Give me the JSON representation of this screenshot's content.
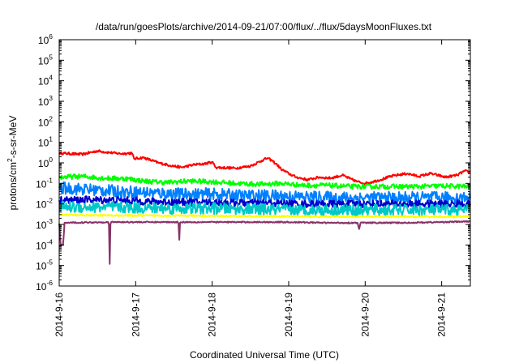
{
  "chart_data": {
    "type": "line",
    "title": "/data/run/goesPlots/archive/2014-09-21/07:00/flux/../flux/5daysMoonFluxes.txt",
    "xlabel": "Coordinated Universal Time (UTC)",
    "ylabel": {
      "base": "protons/cm",
      "sup": "2",
      "rest": "-s-sr-MeV"
    },
    "y_scale": "log",
    "ylim": [
      1e-06,
      1000000.0
    ],
    "y_ticks": [
      {
        "base": "10",
        "exp": "6"
      },
      {
        "base": "10",
        "exp": "5"
      },
      {
        "base": "10",
        "exp": "4"
      },
      {
        "base": "10",
        "exp": "3"
      },
      {
        "base": "10",
        "exp": "2"
      },
      {
        "base": "10",
        "exp": "1"
      },
      {
        "base": "10",
        "exp": "0"
      },
      {
        "base": "10",
        "exp": "-1"
      },
      {
        "base": "10",
        "exp": "-2"
      },
      {
        "base": "10",
        "exp": "-3"
      },
      {
        "base": "10",
        "exp": "-4"
      },
      {
        "base": "10",
        "exp": "-5"
      },
      {
        "base": "10",
        "exp": "-6"
      }
    ],
    "x_range_days": [
      "2014-09-16 00:00",
      "2014-09-21 09:00"
    ],
    "x_ticks": [
      "2014-9-16",
      "2014-9-17",
      "2014-9-18",
      "2014-9-19",
      "2014-9-20",
      "2014-9-21"
    ],
    "grid": false,
    "legend": "none",
    "series": [
      {
        "color": "#ff0000",
        "points": [
          [
            0.0,
            3.0
          ],
          [
            0.3,
            2.6
          ],
          [
            0.5,
            3.8
          ],
          [
            0.65,
            3.2
          ],
          [
            0.8,
            2.8
          ],
          [
            0.95,
            3.0
          ],
          [
            0.98,
            1.6
          ],
          [
            1.1,
            1.8
          ],
          [
            1.3,
            1.0
          ],
          [
            1.45,
            0.75
          ],
          [
            1.6,
            0.6
          ],
          [
            1.75,
            0.8
          ],
          [
            1.9,
            0.9
          ],
          [
            2.0,
            1.1
          ],
          [
            2.05,
            0.6
          ],
          [
            2.3,
            0.55
          ],
          [
            2.5,
            0.7
          ],
          [
            2.65,
            1.3
          ],
          [
            2.72,
            1.7
          ],
          [
            2.78,
            1.3
          ],
          [
            2.85,
            0.8
          ],
          [
            2.9,
            0.5
          ],
          [
            3.0,
            0.3
          ],
          [
            3.1,
            0.2
          ],
          [
            3.25,
            0.15
          ],
          [
            3.4,
            0.2
          ],
          [
            3.55,
            0.18
          ],
          [
            3.7,
            0.25
          ],
          [
            3.8,
            0.17
          ],
          [
            3.9,
            0.12
          ],
          [
            4.0,
            0.1
          ],
          [
            4.1,
            0.12
          ],
          [
            4.2,
            0.15
          ],
          [
            4.3,
            0.2
          ],
          [
            4.4,
            0.25
          ],
          [
            4.55,
            0.3
          ],
          [
            4.7,
            0.22
          ],
          [
            4.85,
            0.3
          ],
          [
            4.95,
            0.25
          ],
          [
            5.05,
            0.2
          ],
          [
            5.2,
            0.25
          ],
          [
            5.3,
            0.4
          ],
          [
            5.375,
            0.35
          ]
        ]
      },
      {
        "color": "#00ff00",
        "points": [
          [
            0.0,
            0.2
          ],
          [
            0.3,
            0.22
          ],
          [
            0.6,
            0.18
          ],
          [
            0.9,
            0.17
          ],
          [
            1.1,
            0.13
          ],
          [
            1.4,
            0.11
          ],
          [
            1.7,
            0.13
          ],
          [
            2.0,
            0.12
          ],
          [
            2.3,
            0.1
          ],
          [
            2.6,
            0.09
          ],
          [
            2.9,
            0.1
          ],
          [
            3.2,
            0.08
          ],
          [
            3.5,
            0.08
          ],
          [
            3.8,
            0.07
          ],
          [
            4.1,
            0.07
          ],
          [
            4.4,
            0.07
          ],
          [
            4.7,
            0.07
          ],
          [
            5.0,
            0.075
          ],
          [
            5.375,
            0.07
          ]
        ]
      },
      {
        "color": "#0080ff",
        "points": [
          [
            0.0,
            0.06
          ],
          [
            0.4,
            0.05
          ],
          [
            0.8,
            0.04
          ],
          [
            1.2,
            0.035
          ],
          [
            1.6,
            0.03
          ],
          [
            2.0,
            0.03
          ],
          [
            2.4,
            0.025
          ],
          [
            2.8,
            0.025
          ],
          [
            3.2,
            0.022
          ],
          [
            3.6,
            0.02
          ],
          [
            4.0,
            0.02
          ],
          [
            4.4,
            0.02
          ],
          [
            4.8,
            0.02
          ],
          [
            5.375,
            0.02
          ]
        ]
      },
      {
        "color": "#0000cc",
        "points": [
          [
            0.0,
            0.015
          ],
          [
            0.4,
            0.016
          ],
          [
            0.8,
            0.015
          ],
          [
            1.2,
            0.013
          ],
          [
            1.6,
            0.012
          ],
          [
            2.0,
            0.012
          ],
          [
            2.4,
            0.011
          ],
          [
            2.8,
            0.011
          ],
          [
            3.2,
            0.01
          ],
          [
            3.6,
            0.01
          ],
          [
            4.0,
            0.01
          ],
          [
            4.4,
            0.01
          ],
          [
            4.8,
            0.01
          ],
          [
            5.375,
            0.01
          ]
        ]
      },
      {
        "color": "#00c8c8",
        "points": [
          [
            0.0,
            0.007
          ],
          [
            0.5,
            0.007
          ],
          [
            1.0,
            0.0065
          ],
          [
            1.5,
            0.006
          ],
          [
            2.0,
            0.006
          ],
          [
            2.5,
            0.0055
          ],
          [
            3.0,
            0.005
          ],
          [
            3.5,
            0.005
          ],
          [
            4.0,
            0.005
          ],
          [
            4.5,
            0.005
          ],
          [
            5.0,
            0.005
          ],
          [
            5.375,
            0.005
          ]
        ]
      },
      {
        "color": "#ffff00",
        "points": [
          [
            0.0,
            0.003
          ],
          [
            0.5,
            0.0028
          ],
          [
            1.0,
            0.0027
          ],
          [
            1.5,
            0.0027
          ],
          [
            2.0,
            0.0026
          ],
          [
            2.5,
            0.0025
          ],
          [
            3.0,
            0.0025
          ],
          [
            3.5,
            0.0024
          ],
          [
            4.0,
            0.0024
          ],
          [
            4.5,
            0.0024
          ],
          [
            5.0,
            0.0024
          ],
          [
            5.375,
            0.0024
          ]
        ]
      },
      {
        "color": "#883366",
        "points": [
          [
            0.0,
            0.0011
          ],
          [
            0.02,
            0.0001
          ],
          [
            0.05,
            0.0001
          ],
          [
            0.07,
            0.0012
          ],
          [
            0.64,
            0.0013
          ],
          [
            0.65,
            0.00097
          ],
          [
            0.66,
            1.2e-05
          ],
          [
            0.67,
            0.001
          ],
          [
            0.68,
            0.0013
          ],
          [
            1.55,
            0.0013
          ],
          [
            1.56,
            0.0011
          ],
          [
            1.57,
            0.00018
          ],
          [
            1.58,
            0.0012
          ],
          [
            1.59,
            0.0013
          ],
          [
            3.0,
            0.0013
          ],
          [
            3.5,
            0.0012
          ],
          [
            3.9,
            0.0012
          ],
          [
            3.92,
            0.0006
          ],
          [
            3.94,
            0.0012
          ],
          [
            4.5,
            0.0012
          ],
          [
            5.0,
            0.0013
          ],
          [
            5.375,
            0.0014
          ]
        ]
      }
    ]
  }
}
